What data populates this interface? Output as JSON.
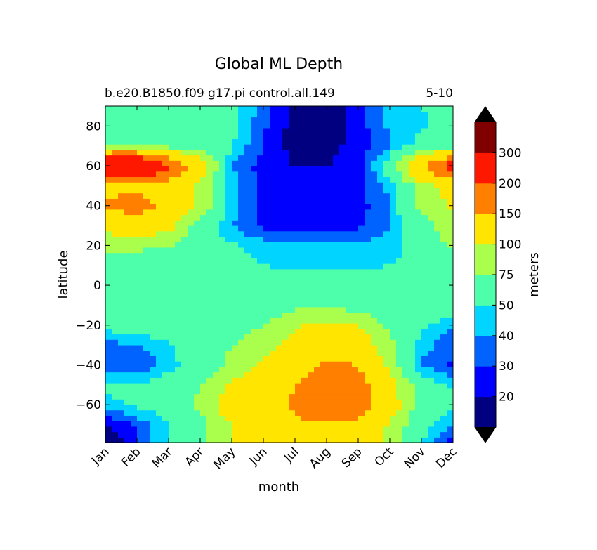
{
  "chart_data": {
    "type": "heatmap",
    "title": "Global ML Depth",
    "subtitle_left": "b.e20.B1850.f09 g17.pi control.all.149",
    "subtitle_right": "5-10",
    "xlabel": "month",
    "ylabel": "latitude",
    "x_ticks": [
      "Jan",
      "Feb",
      "Mar",
      "Apr",
      "May",
      "Jun",
      "Jul",
      "Aug",
      "Sep",
      "Oct",
      "Nov",
      "Dec"
    ],
    "y_ticks": [
      80,
      60,
      40,
      20,
      0,
      -20,
      -40,
      -60
    ],
    "ylim": [
      -79,
      90
    ],
    "xlim": [
      0,
      11
    ],
    "colorbar": {
      "label": "meters",
      "extend": "both",
      "levels": [
        10,
        20,
        30,
        40,
        50,
        75,
        100,
        150,
        200,
        300,
        400
      ],
      "tick_labels": [
        "20",
        "30",
        "40",
        "50",
        "75",
        "100",
        "150",
        "200",
        "300"
      ],
      "under_color": "#000000",
      "over_color": "#000000",
      "colors": [
        "#000080",
        "#0000ff",
        "#0062ff",
        "#00d4ff",
        "#4dffaa",
        "#aaff4d",
        "#ffe500",
        "#ff7f00",
        "#ff1800",
        "#800000"
      ]
    },
    "lat": [
      -78,
      -70,
      -60,
      -50,
      -40,
      -30,
      -20,
      -10,
      0,
      10,
      20,
      30,
      40,
      50,
      60,
      70,
      80,
      90
    ],
    "values": [
      [
        10,
        28,
        52,
        70,
        100,
        120,
        140,
        150,
        130,
        90,
        52,
        22
      ],
      [
        18,
        32,
        50,
        65,
        100,
        130,
        145,
        145,
        140,
        95,
        55,
        40
      ],
      [
        45,
        52,
        60,
        80,
        120,
        130,
        155,
        175,
        175,
        120,
        62,
        52
      ],
      [
        55,
        52,
        60,
        75,
        105,
        120,
        150,
        175,
        170,
        110,
        62,
        48
      ],
      [
        35,
        30,
        45,
        60,
        80,
        105,
        130,
        160,
        150,
        90,
        38,
        28
      ],
      [
        35,
        40,
        48,
        60,
        75,
        90,
        110,
        130,
        120,
        80,
        45,
        32
      ],
      [
        55,
        60,
        62,
        60,
        60,
        75,
        95,
        110,
        100,
        70,
        52,
        42
      ],
      [
        62,
        62,
        62,
        60,
        55,
        60,
        70,
        70,
        65,
        60,
        58,
        62
      ],
      [
        75,
        60,
        55,
        55,
        55,
        55,
        60,
        68,
        68,
        65,
        60,
        72
      ],
      [
        60,
        60,
        60,
        55,
        55,
        50,
        48,
        45,
        45,
        50,
        55,
        60
      ],
      [
        80,
        80,
        75,
        60,
        52,
        45,
        42,
        42,
        42,
        45,
        55,
        80
      ],
      [
        110,
        125,
        110,
        62,
        40,
        28,
        25,
        25,
        28,
        40,
        60,
        95
      ],
      [
        155,
        170,
        140,
        90,
        45,
        25,
        22,
        22,
        25,
        40,
        80,
        105
      ],
      [
        140,
        140,
        125,
        90,
        45,
        25,
        20,
        22,
        28,
        42,
        85,
        110
      ],
      [
        320,
        320,
        200,
        120,
        40,
        25,
        20,
        20,
        25,
        60,
        150,
        230
      ],
      [
        70,
        75,
        70,
        60,
        50,
        30,
        15,
        15,
        25,
        40,
        55,
        65
      ],
      [
        55,
        60,
        62,
        60,
        55,
        32,
        15,
        12,
        25,
        42,
        48,
        55
      ],
      [
        55,
        60,
        58,
        58,
        55,
        35,
        18,
        12,
        25,
        45,
        50,
        55
      ]
    ]
  }
}
